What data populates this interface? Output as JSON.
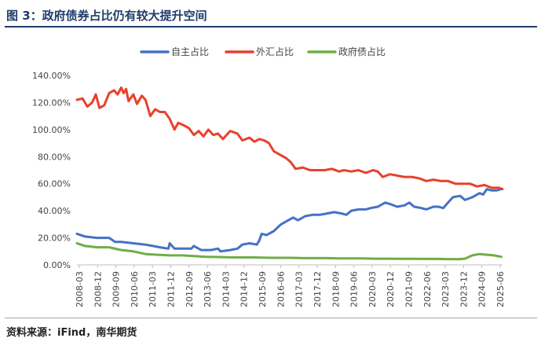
{
  "header": {
    "title": "图 3：政府债券占比仍有较大提升空间"
  },
  "footer": {
    "source": "资料来源：iFind，南华期货"
  },
  "chart_data": {
    "type": "line",
    "title": "图 3：政府债券占比仍有较大提升空间",
    "xlabel": "",
    "ylabel": "",
    "ylim": [
      0,
      140
    ],
    "y_ticks": [
      "0.00%",
      "20.00%",
      "40.00%",
      "60.00%",
      "80.00%",
      "100.00%",
      "120.00%",
      "140.00%"
    ],
    "x_ticks": [
      "2008-03",
      "2008-12",
      "2009-09",
      "2010-06",
      "2011-03",
      "2011-12",
      "2012-09",
      "2013-06",
      "2014-03",
      "2014-12",
      "2015-09",
      "2016-06",
      "2017-03",
      "2017-12",
      "2018-09",
      "2019-06",
      "2020-03",
      "2020-12",
      "2021-09",
      "2022-06",
      "2023-03",
      "2023-12",
      "2024-09",
      "2025-06"
    ],
    "legend": [
      "自主占比",
      "外汇占比",
      "政府债占比"
    ],
    "legend_position": "top",
    "series": [
      {
        "name": "自主占比",
        "color": "#4472c4",
        "points": [
          [
            2008.17,
            23
          ],
          [
            2008.5,
            21
          ],
          [
            2009.0,
            20
          ],
          [
            2009.5,
            20
          ],
          [
            2009.75,
            17
          ],
          [
            2010.0,
            17
          ],
          [
            2010.5,
            16
          ],
          [
            2011.0,
            15
          ],
          [
            2011.3,
            14
          ],
          [
            2011.6,
            13
          ],
          [
            2011.95,
            12
          ],
          [
            2012.0,
            16
          ],
          [
            2012.2,
            12
          ],
          [
            2012.6,
            12
          ],
          [
            2012.9,
            12
          ],
          [
            2013.0,
            14
          ],
          [
            2013.3,
            11
          ],
          [
            2013.7,
            11
          ],
          [
            2014.0,
            12
          ],
          [
            2014.1,
            10
          ],
          [
            2014.5,
            11
          ],
          [
            2014.8,
            12
          ],
          [
            2015.0,
            15
          ],
          [
            2015.3,
            16
          ],
          [
            2015.6,
            15
          ],
          [
            2015.7,
            18
          ],
          [
            2015.8,
            23
          ],
          [
            2016.0,
            22
          ],
          [
            2016.3,
            25
          ],
          [
            2016.6,
            30
          ],
          [
            2016.9,
            33
          ],
          [
            2017.1,
            35
          ],
          [
            2017.3,
            33
          ],
          [
            2017.6,
            36
          ],
          [
            2017.9,
            37
          ],
          [
            2018.2,
            37
          ],
          [
            2018.5,
            38
          ],
          [
            2018.8,
            39
          ],
          [
            2019.1,
            38
          ],
          [
            2019.3,
            37
          ],
          [
            2019.5,
            40
          ],
          [
            2019.8,
            41
          ],
          [
            2020.1,
            41
          ],
          [
            2020.3,
            42
          ],
          [
            2020.6,
            43
          ],
          [
            2020.9,
            46
          ],
          [
            2021.1,
            45
          ],
          [
            2021.4,
            43
          ],
          [
            2021.7,
            44
          ],
          [
            2021.9,
            46
          ],
          [
            2022.1,
            43
          ],
          [
            2022.4,
            42
          ],
          [
            2022.6,
            41
          ],
          [
            2022.9,
            43
          ],
          [
            2023.1,
            43
          ],
          [
            2023.3,
            42
          ],
          [
            2023.5,
            46
          ],
          [
            2023.7,
            50
          ],
          [
            2024.0,
            51
          ],
          [
            2024.2,
            48
          ],
          [
            2024.5,
            50
          ],
          [
            2024.8,
            53
          ],
          [
            2024.95,
            52
          ],
          [
            2025.1,
            56
          ],
          [
            2025.3,
            55
          ],
          [
            2025.5,
            55
          ],
          [
            2025.7,
            56
          ]
        ]
      },
      {
        "name": "外汇占比",
        "color": "#e8412c",
        "points": [
          [
            2008.17,
            122
          ],
          [
            2008.4,
            123
          ],
          [
            2008.6,
            117
          ],
          [
            2008.8,
            120
          ],
          [
            2008.95,
            126
          ],
          [
            2009.1,
            116
          ],
          [
            2009.3,
            118
          ],
          [
            2009.5,
            127
          ],
          [
            2009.7,
            129
          ],
          [
            2009.85,
            126
          ],
          [
            2010.0,
            131
          ],
          [
            2010.1,
            127
          ],
          [
            2010.2,
            130
          ],
          [
            2010.3,
            121
          ],
          [
            2010.5,
            126
          ],
          [
            2010.65,
            119
          ],
          [
            2010.85,
            125
          ],
          [
            2011.0,
            122
          ],
          [
            2011.2,
            110
          ],
          [
            2011.4,
            115
          ],
          [
            2011.6,
            113
          ],
          [
            2011.8,
            113
          ],
          [
            2012.0,
            108
          ],
          [
            2012.2,
            100
          ],
          [
            2012.35,
            105
          ],
          [
            2012.6,
            103
          ],
          [
            2012.8,
            101
          ],
          [
            2013.0,
            96
          ],
          [
            2013.2,
            99
          ],
          [
            2013.4,
            95
          ],
          [
            2013.6,
            100
          ],
          [
            2013.8,
            96
          ],
          [
            2014.0,
            97
          ],
          [
            2014.2,
            93
          ],
          [
            2014.5,
            99
          ],
          [
            2014.8,
            97
          ],
          [
            2015.0,
            92
          ],
          [
            2015.3,
            94
          ],
          [
            2015.5,
            91
          ],
          [
            2015.7,
            93
          ],
          [
            2015.9,
            92
          ],
          [
            2016.1,
            90
          ],
          [
            2016.3,
            84
          ],
          [
            2016.6,
            81
          ],
          [
            2016.8,
            79
          ],
          [
            2017.0,
            76
          ],
          [
            2017.2,
            71
          ],
          [
            2017.5,
            72
          ],
          [
            2017.8,
            70
          ],
          [
            2018.1,
            70
          ],
          [
            2018.4,
            70
          ],
          [
            2018.7,
            71
          ],
          [
            2019.0,
            69
          ],
          [
            2019.2,
            70
          ],
          [
            2019.5,
            69
          ],
          [
            2019.8,
            70
          ],
          [
            2020.1,
            68
          ],
          [
            2020.4,
            70
          ],
          [
            2020.6,
            69
          ],
          [
            2020.8,
            65
          ],
          [
            2021.1,
            67
          ],
          [
            2021.4,
            66
          ],
          [
            2021.7,
            65
          ],
          [
            2022.0,
            65
          ],
          [
            2022.3,
            64
          ],
          [
            2022.6,
            62
          ],
          [
            2022.9,
            63
          ],
          [
            2023.2,
            62
          ],
          [
            2023.5,
            62
          ],
          [
            2023.8,
            60
          ],
          [
            2024.1,
            60
          ],
          [
            2024.4,
            60
          ],
          [
            2024.7,
            58
          ],
          [
            2025.0,
            59
          ],
          [
            2025.3,
            57
          ],
          [
            2025.6,
            57
          ],
          [
            2025.75,
            56
          ]
        ]
      },
      {
        "name": "政府债占比",
        "color": "#70ad47",
        "points": [
          [
            2008.17,
            16
          ],
          [
            2008.5,
            14
          ],
          [
            2009.0,
            13
          ],
          [
            2009.5,
            13
          ],
          [
            2010.0,
            11
          ],
          [
            2010.5,
            10
          ],
          [
            2011.0,
            8
          ],
          [
            2011.5,
            7.5
          ],
          [
            2012.0,
            7
          ],
          [
            2012.5,
            7
          ],
          [
            2013.0,
            6.5
          ],
          [
            2013.5,
            6
          ],
          [
            2014.0,
            5.8
          ],
          [
            2014.5,
            5.6
          ],
          [
            2015.0,
            5.5
          ],
          [
            2015.5,
            5.5
          ],
          [
            2016.0,
            5.3
          ],
          [
            2016.5,
            5.2
          ],
          [
            2017.0,
            5.2
          ],
          [
            2017.5,
            5
          ],
          [
            2018.0,
            5
          ],
          [
            2018.5,
            5
          ],
          [
            2019.0,
            4.8
          ],
          [
            2019.5,
            4.8
          ],
          [
            2020.0,
            4.8
          ],
          [
            2020.5,
            4.6
          ],
          [
            2021.0,
            4.6
          ],
          [
            2021.5,
            4.5
          ],
          [
            2022.0,
            4.5
          ],
          [
            2022.5,
            4.4
          ],
          [
            2023.0,
            4.4
          ],
          [
            2023.5,
            4.3
          ],
          [
            2023.9,
            4.2
          ],
          [
            2024.2,
            4.6
          ],
          [
            2024.5,
            7
          ],
          [
            2024.8,
            8
          ],
          [
            2025.1,
            7.5
          ],
          [
            2025.4,
            7
          ],
          [
            2025.7,
            6
          ]
        ]
      }
    ]
  }
}
